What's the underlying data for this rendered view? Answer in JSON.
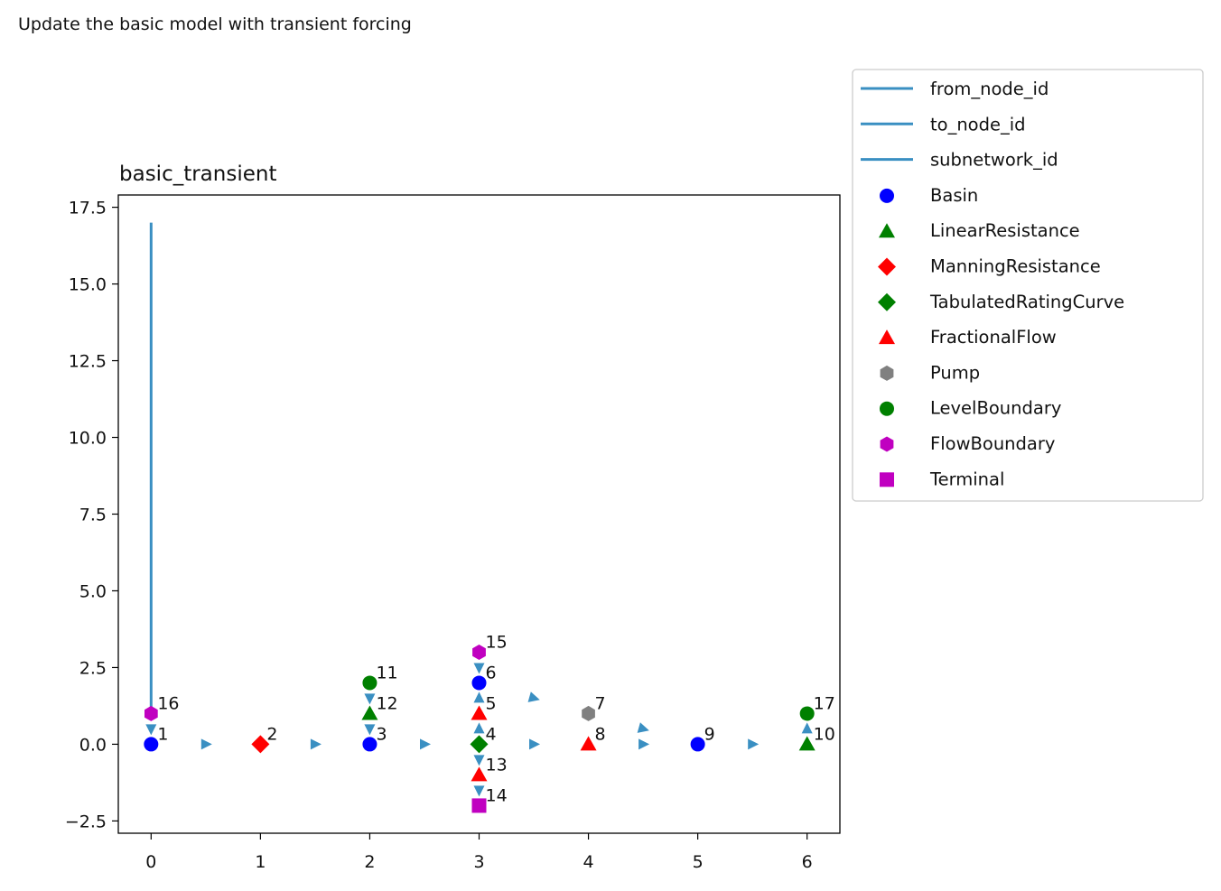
{
  "page": {
    "heading": "Update the basic model with transient forcing"
  },
  "chart_data": {
    "type": "scatter",
    "title": "basic_transient",
    "xlabel": "",
    "ylabel": "",
    "xlim": [
      -0.3,
      6.3
    ],
    "ylim": [
      -2.9,
      17.9
    ],
    "xticks": [
      0,
      1,
      2,
      3,
      4,
      5,
      6
    ],
    "yticks": [
      -2.5,
      0.0,
      2.5,
      5.0,
      7.5,
      10.0,
      12.5,
      15.0,
      17.5
    ],
    "ytick_labels": [
      "−2.5",
      "0.0",
      "2.5",
      "5.0",
      "7.5",
      "10.0",
      "12.5",
      "15.0",
      "17.5"
    ],
    "grid": false,
    "legend_placement": "outside-top-right",
    "edge_color": "#3a8fc2",
    "control_line": {
      "x": [
        0,
        0
      ],
      "y": [
        1,
        17
      ]
    },
    "node_types": [
      {
        "name": "Basin",
        "marker": "circle",
        "color": "#0000ff"
      },
      {
        "name": "LinearResistance",
        "marker": "triangle-up",
        "color": "#008000"
      },
      {
        "name": "ManningResistance",
        "marker": "diamond",
        "color": "#ff0000"
      },
      {
        "name": "TabulatedRatingCurve",
        "marker": "diamond",
        "color": "#008000"
      },
      {
        "name": "FractionalFlow",
        "marker": "triangle-up",
        "color": "#ff0000"
      },
      {
        "name": "Pump",
        "marker": "hexagon",
        "color": "#808080"
      },
      {
        "name": "LevelBoundary",
        "marker": "circle",
        "color": "#008000"
      },
      {
        "name": "FlowBoundary",
        "marker": "hexagon",
        "color": "#c000c0"
      },
      {
        "name": "Terminal",
        "marker": "square",
        "color": "#c000c0"
      }
    ],
    "legend_lines": [
      "from_node_id",
      "to_node_id",
      "subnetwork_id"
    ],
    "nodes": [
      {
        "id": "1",
        "x": 0,
        "y": 0,
        "type": "Basin"
      },
      {
        "id": "2",
        "x": 1,
        "y": 0,
        "type": "ManningResistance"
      },
      {
        "id": "3",
        "x": 2,
        "y": 0,
        "type": "Basin"
      },
      {
        "id": "4",
        "x": 3,
        "y": 0,
        "type": "TabulatedRatingCurve"
      },
      {
        "id": "5",
        "x": 3,
        "y": 1,
        "type": "FractionalFlow"
      },
      {
        "id": "6",
        "x": 3,
        "y": 2,
        "type": "Basin"
      },
      {
        "id": "7",
        "x": 4,
        "y": 1,
        "type": "Pump"
      },
      {
        "id": "8",
        "x": 4,
        "y": 0,
        "type": "FractionalFlow"
      },
      {
        "id": "9",
        "x": 5,
        "y": 0,
        "type": "Basin"
      },
      {
        "id": "10",
        "x": 6,
        "y": 0,
        "type": "LinearResistance"
      },
      {
        "id": "11",
        "x": 2,
        "y": 2,
        "type": "LevelBoundary"
      },
      {
        "id": "12",
        "x": 2,
        "y": 1,
        "type": "LinearResistance"
      },
      {
        "id": "13",
        "x": 3,
        "y": -1,
        "type": "FractionalFlow"
      },
      {
        "id": "14",
        "x": 3,
        "y": -2,
        "type": "Terminal"
      },
      {
        "id": "15",
        "x": 3,
        "y": 3,
        "type": "FlowBoundary"
      },
      {
        "id": "16",
        "x": 0,
        "y": 1,
        "type": "FlowBoundary"
      },
      {
        "id": "17",
        "x": 6,
        "y": 1,
        "type": "LevelBoundary"
      }
    ],
    "edges": [
      {
        "from": "1",
        "to": "2"
      },
      {
        "from": "2",
        "to": "3"
      },
      {
        "from": "3",
        "to": "4"
      },
      {
        "from": "4",
        "to": "5"
      },
      {
        "from": "5",
        "to": "6"
      },
      {
        "from": "6",
        "to": "7"
      },
      {
        "from": "7",
        "to": "9"
      },
      {
        "from": "4",
        "to": "8"
      },
      {
        "from": "8",
        "to": "9"
      },
      {
        "from": "9",
        "to": "10"
      },
      {
        "from": "10",
        "to": "17"
      },
      {
        "from": "11",
        "to": "12"
      },
      {
        "from": "12",
        "to": "3"
      },
      {
        "from": "4",
        "to": "13"
      },
      {
        "from": "13",
        "to": "14"
      },
      {
        "from": "15",
        "to": "6"
      },
      {
        "from": "16",
        "to": "1"
      }
    ]
  }
}
